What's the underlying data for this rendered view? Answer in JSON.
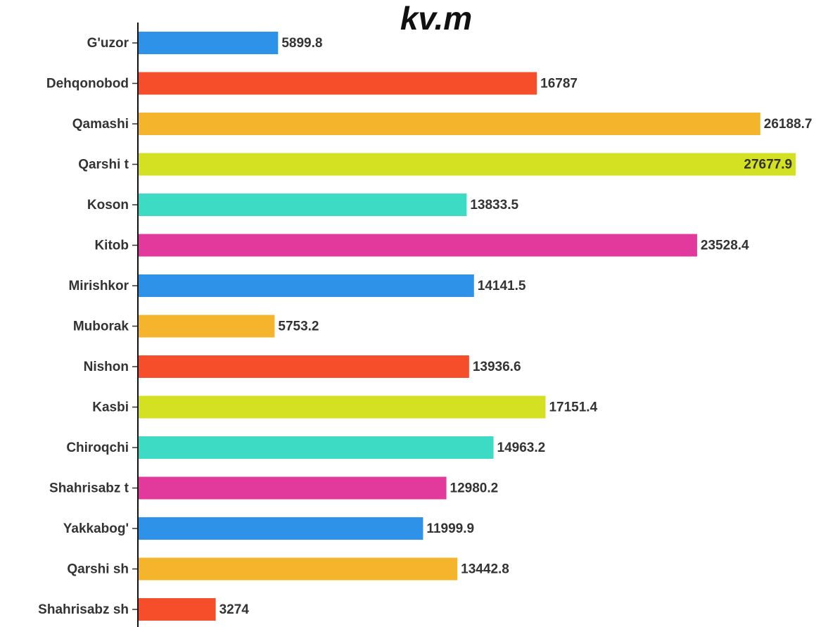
{
  "chart_data": {
    "type": "bar",
    "orientation": "horizontal",
    "title": "kv.m",
    "categories": [
      "G'uzor",
      "Dehqonobod",
      "Qamashi",
      "Qarshi t",
      "Koson",
      "Kitob",
      "Mirishkor",
      "Muborak",
      "Nishon",
      "Kasbi",
      "Chiroqchi",
      "Shahrisabz t",
      "Yakkabog'",
      "Qarshi sh",
      "Shahrisabz sh"
    ],
    "values": [
      5899.8,
      16787,
      26188.7,
      27677.9,
      13833.5,
      23528.4,
      14141.5,
      5753.2,
      13936.6,
      17151.4,
      14963.2,
      12980.2,
      11999.9,
      13442.8,
      3274
    ],
    "colors": [
      "#2e93e8",
      "#f64d2a",
      "#f4b42b",
      "#d4e022",
      "#3ddbc4",
      "#e13a9c",
      "#2e93e8",
      "#f4b42b",
      "#f64d2a",
      "#d4e022",
      "#3ddbc4",
      "#e13a9c",
      "#2e93e8",
      "#f4b42b",
      "#f64d2a"
    ],
    "xlim": [
      0,
      28000
    ]
  }
}
